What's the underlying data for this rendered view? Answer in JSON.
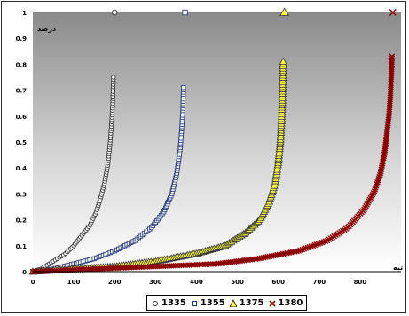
{
  "chart_data": {
    "type": "scatter",
    "title": "",
    "xlabel": "تبه",
    "ylabel": "درصد",
    "xlim": [
      0,
      900
    ],
    "ylim": [
      0,
      1
    ],
    "x_ticks": [
      "0",
      "100",
      "200",
      "300",
      "400",
      "500",
      "600",
      "700",
      "800"
    ],
    "y_ticks": [
      "0",
      "0.1",
      "0.2",
      "0.3",
      "0.4",
      "0.5",
      "0.6",
      "0.7",
      "0.8",
      "0.9",
      "1"
    ],
    "background": "gradient-gray",
    "legend_position": "bottom",
    "series": [
      {
        "name": "1335",
        "marker": "circle",
        "color": "#333333",
        "fill": "#ffffff",
        "max_x": 197,
        "points": [
          [
            0,
            0
          ],
          [
            20,
            0.01
          ],
          [
            40,
            0.03
          ],
          [
            60,
            0.05
          ],
          [
            80,
            0.07
          ],
          [
            100,
            0.1
          ],
          [
            120,
            0.14
          ],
          [
            140,
            0.18
          ],
          [
            155,
            0.23
          ],
          [
            165,
            0.28
          ],
          [
            175,
            0.34
          ],
          [
            183,
            0.41
          ],
          [
            188,
            0.48
          ],
          [
            192,
            0.56
          ],
          [
            195,
            0.64
          ],
          [
            197,
            0.75
          ]
        ],
        "outliers": [
          [
            200,
            1
          ]
        ]
      },
      {
        "name": "1355",
        "marker": "square",
        "color": "#2a3f7a",
        "fill": "#ffffff",
        "max_x": 368,
        "points": [
          [
            0,
            0
          ],
          [
            50,
            0.01
          ],
          [
            100,
            0.03
          ],
          [
            150,
            0.05
          ],
          [
            200,
            0.08
          ],
          [
            250,
            0.12
          ],
          [
            290,
            0.17
          ],
          [
            320,
            0.23
          ],
          [
            340,
            0.3
          ],
          [
            352,
            0.38
          ],
          [
            360,
            0.47
          ],
          [
            364,
            0.55
          ],
          [
            367,
            0.63
          ],
          [
            368,
            0.71
          ]
        ],
        "outliers": [
          [
            372,
            1
          ]
        ]
      },
      {
        "name": "1375",
        "marker": "triangle",
        "color": "#333333",
        "fill": "#ffff40",
        "max_x": 612,
        "points": [
          [
            0,
            0
          ],
          [
            100,
            0.01
          ],
          [
            200,
            0.02
          ],
          [
            300,
            0.04
          ],
          [
            400,
            0.07
          ],
          [
            470,
            0.1
          ],
          [
            520,
            0.15
          ],
          [
            555,
            0.2
          ],
          [
            578,
            0.27
          ],
          [
            592,
            0.34
          ],
          [
            600,
            0.42
          ],
          [
            605,
            0.5
          ],
          [
            608,
            0.58
          ],
          [
            610,
            0.66
          ],
          [
            611,
            0.73
          ],
          [
            612,
            0.81
          ]
        ],
        "outliers": [
          [
            615,
            1
          ]
        ]
      },
      {
        "name": "1380",
        "marker": "x",
        "color": "#8b0000",
        "fill": "#8b0000",
        "max_x": 878,
        "points": [
          [
            0,
            0
          ],
          [
            150,
            0.01
          ],
          [
            300,
            0.02
          ],
          [
            450,
            0.03
          ],
          [
            550,
            0.05
          ],
          [
            650,
            0.08
          ],
          [
            720,
            0.12
          ],
          [
            770,
            0.17
          ],
          [
            810,
            0.24
          ],
          [
            835,
            0.31
          ],
          [
            850,
            0.38
          ],
          [
            860,
            0.46
          ],
          [
            866,
            0.54
          ],
          [
            871,
            0.61
          ],
          [
            874,
            0.68
          ],
          [
            876,
            0.75
          ],
          [
            878,
            0.83
          ]
        ],
        "outliers": [
          [
            880,
            1
          ]
        ]
      }
    ]
  }
}
